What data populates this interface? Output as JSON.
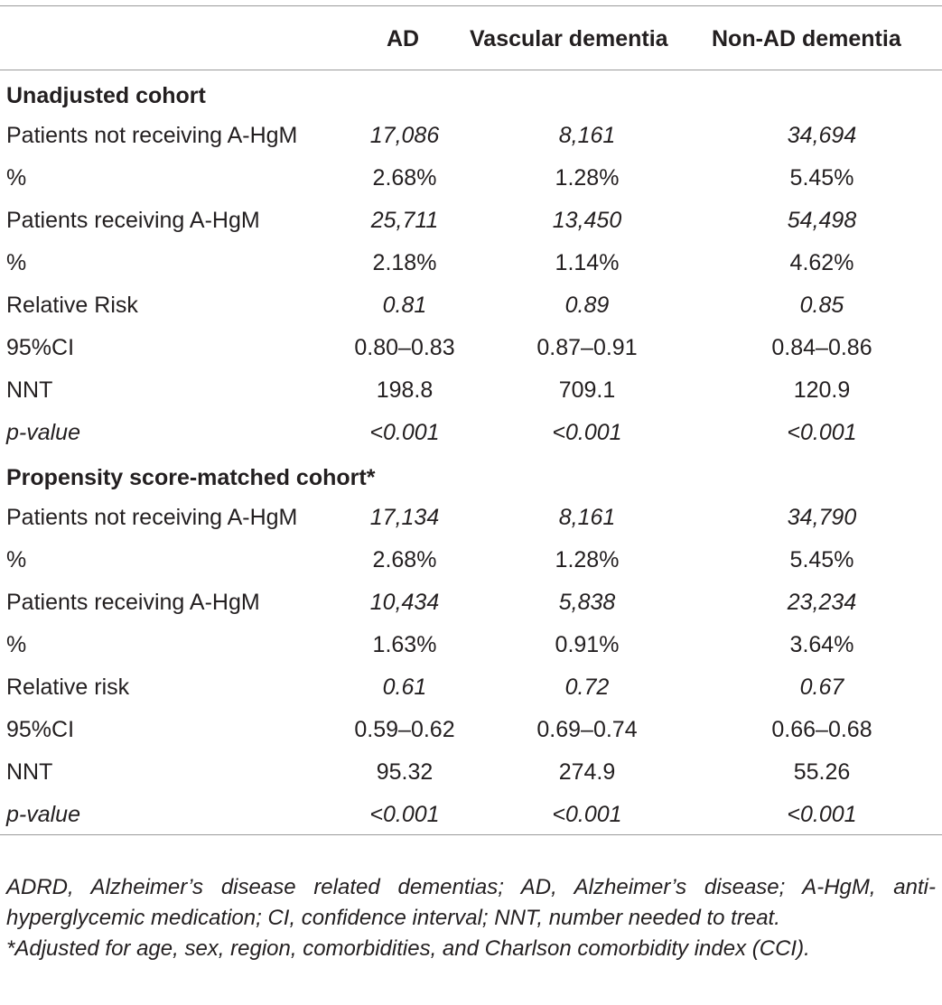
{
  "table": {
    "columns": [
      "AD",
      "Vascular dementia",
      "Non-AD dementia"
    ],
    "sections": [
      {
        "title": "Unadjusted cohort",
        "rows": [
          {
            "label": "Patients not receiving A-HgM",
            "label_italic": false,
            "values_italic": true,
            "values": [
              "17,086",
              "8,161",
              "34,694"
            ]
          },
          {
            "label": "%",
            "label_italic": false,
            "values_italic": false,
            "values": [
              "2.68%",
              "1.28%",
              "5.45%"
            ]
          },
          {
            "label": "Patients receiving A-HgM",
            "label_italic": false,
            "values_italic": true,
            "values": [
              "25,711",
              "13,450",
              "54,498"
            ]
          },
          {
            "label": "%",
            "label_italic": false,
            "values_italic": false,
            "values": [
              "2.18%",
              "1.14%",
              "4.62%"
            ]
          },
          {
            "label": "Relative Risk",
            "label_italic": false,
            "values_italic": true,
            "values": [
              "0.81",
              "0.89",
              "0.85"
            ]
          },
          {
            "label": "95%CI",
            "label_italic": false,
            "values_italic": false,
            "values": [
              "0.80–0.83",
              "0.87–0.91",
              "0.84–0.86"
            ]
          },
          {
            "label": "NNT",
            "label_italic": false,
            "values_italic": false,
            "values": [
              "198.8",
              "709.1",
              "120.9"
            ]
          },
          {
            "label": "p-value",
            "label_italic": true,
            "values_italic": true,
            "values": [
              "<0.001",
              "<0.001",
              "<0.001"
            ]
          }
        ]
      },
      {
        "title": "Propensity score-matched cohort*",
        "rows": [
          {
            "label": "Patients not receiving A-HgM",
            "label_italic": false,
            "values_italic": true,
            "values": [
              "17,134",
              "8,161",
              "34,790"
            ]
          },
          {
            "label": "%",
            "label_italic": false,
            "values_italic": false,
            "values": [
              "2.68%",
              "1.28%",
              "5.45%"
            ]
          },
          {
            "label": "Patients receiving A-HgM",
            "label_italic": false,
            "values_italic": true,
            "values": [
              "10,434",
              "5,838",
              "23,234"
            ]
          },
          {
            "label": "%",
            "label_italic": false,
            "values_italic": false,
            "values": [
              "1.63%",
              "0.91%",
              "3.64%"
            ]
          },
          {
            "label": "Relative risk",
            "label_italic": false,
            "values_italic": true,
            "values": [
              "0.61",
              "0.72",
              "0.67"
            ]
          },
          {
            "label": "95%CI",
            "label_italic": false,
            "values_italic": false,
            "values": [
              "0.59–0.62",
              "0.69–0.74",
              "0.66–0.68"
            ]
          },
          {
            "label": "NNT",
            "label_italic": false,
            "values_italic": false,
            "values": [
              "95.32",
              "274.9",
              "55.26"
            ]
          },
          {
            "label": "p-value",
            "label_italic": true,
            "values_italic": true,
            "values": [
              "<0.001",
              "<0.001",
              "<0.001"
            ]
          }
        ]
      }
    ]
  },
  "footnotes": {
    "abbreviations": "ADRD, Alzheimer’s disease related dementias; AD, Alzheimer’s disease; A-HgM, anti-hyperglycemic medication; CI, confidence interval; NNT, number needed to treat.",
    "adjustment": "*Adjusted for age, sex, region, comorbidities, and Charlson comorbidity index (CCI)."
  },
  "colors": {
    "text": "#231f20",
    "rule": "#9a9a9a"
  }
}
